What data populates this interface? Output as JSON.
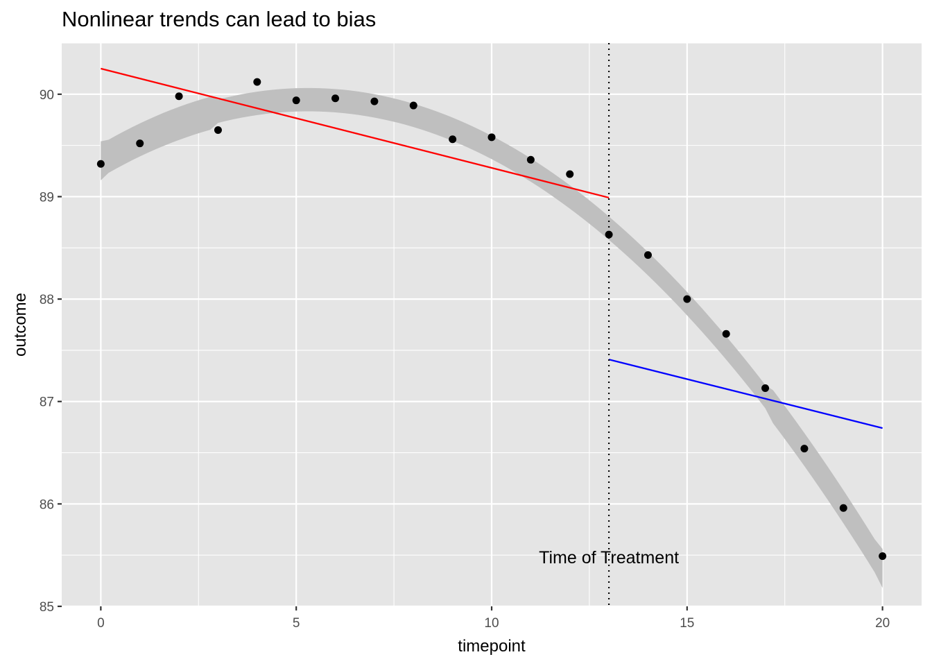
{
  "chart_data": {
    "type": "scatter",
    "title": "Nonlinear trends can lead to bias",
    "xlabel": "timepoint",
    "ylabel": "outcome",
    "xlim": [
      -1,
      21
    ],
    "ylim": [
      85,
      90.5
    ],
    "x_ticks": [
      0,
      5,
      10,
      15,
      20
    ],
    "y_ticks": [
      85,
      86,
      87,
      88,
      89,
      90
    ],
    "grid": true,
    "background": "#e5e5e5",
    "points": {
      "x": [
        0,
        1,
        2,
        3,
        4,
        5,
        6,
        7,
        8,
        9,
        10,
        11,
        12,
        13,
        14,
        15,
        16,
        17,
        18,
        19,
        20
      ],
      "y": [
        89.32,
        89.52,
        89.98,
        89.65,
        90.12,
        89.94,
        89.96,
        89.93,
        89.89,
        89.56,
        89.58,
        89.36,
        89.22,
        88.63,
        88.43,
        88.0,
        87.66,
        87.13,
        86.54,
        85.96,
        85.49
      ],
      "color": "#000000"
    },
    "smooth": {
      "method": "quadratic",
      "coefficients": [
        89.35,
        0.225,
        -0.0212
      ],
      "band_half_width": 0.19,
      "band_color": "#bfbfbf"
    },
    "segments": [
      {
        "x": [
          0,
          13
        ],
        "y": [
          90.25,
          88.99
        ],
        "color": "#ff0000"
      },
      {
        "x": [
          13,
          20
        ],
        "y": [
          87.41,
          86.74
        ],
        "color": "#0000ff"
      }
    ],
    "vline": {
      "x": 13,
      "style": "dotted",
      "color": "#000000"
    },
    "annotation": {
      "text": "Time of Treatment",
      "x": 13,
      "y": 85.48
    }
  }
}
